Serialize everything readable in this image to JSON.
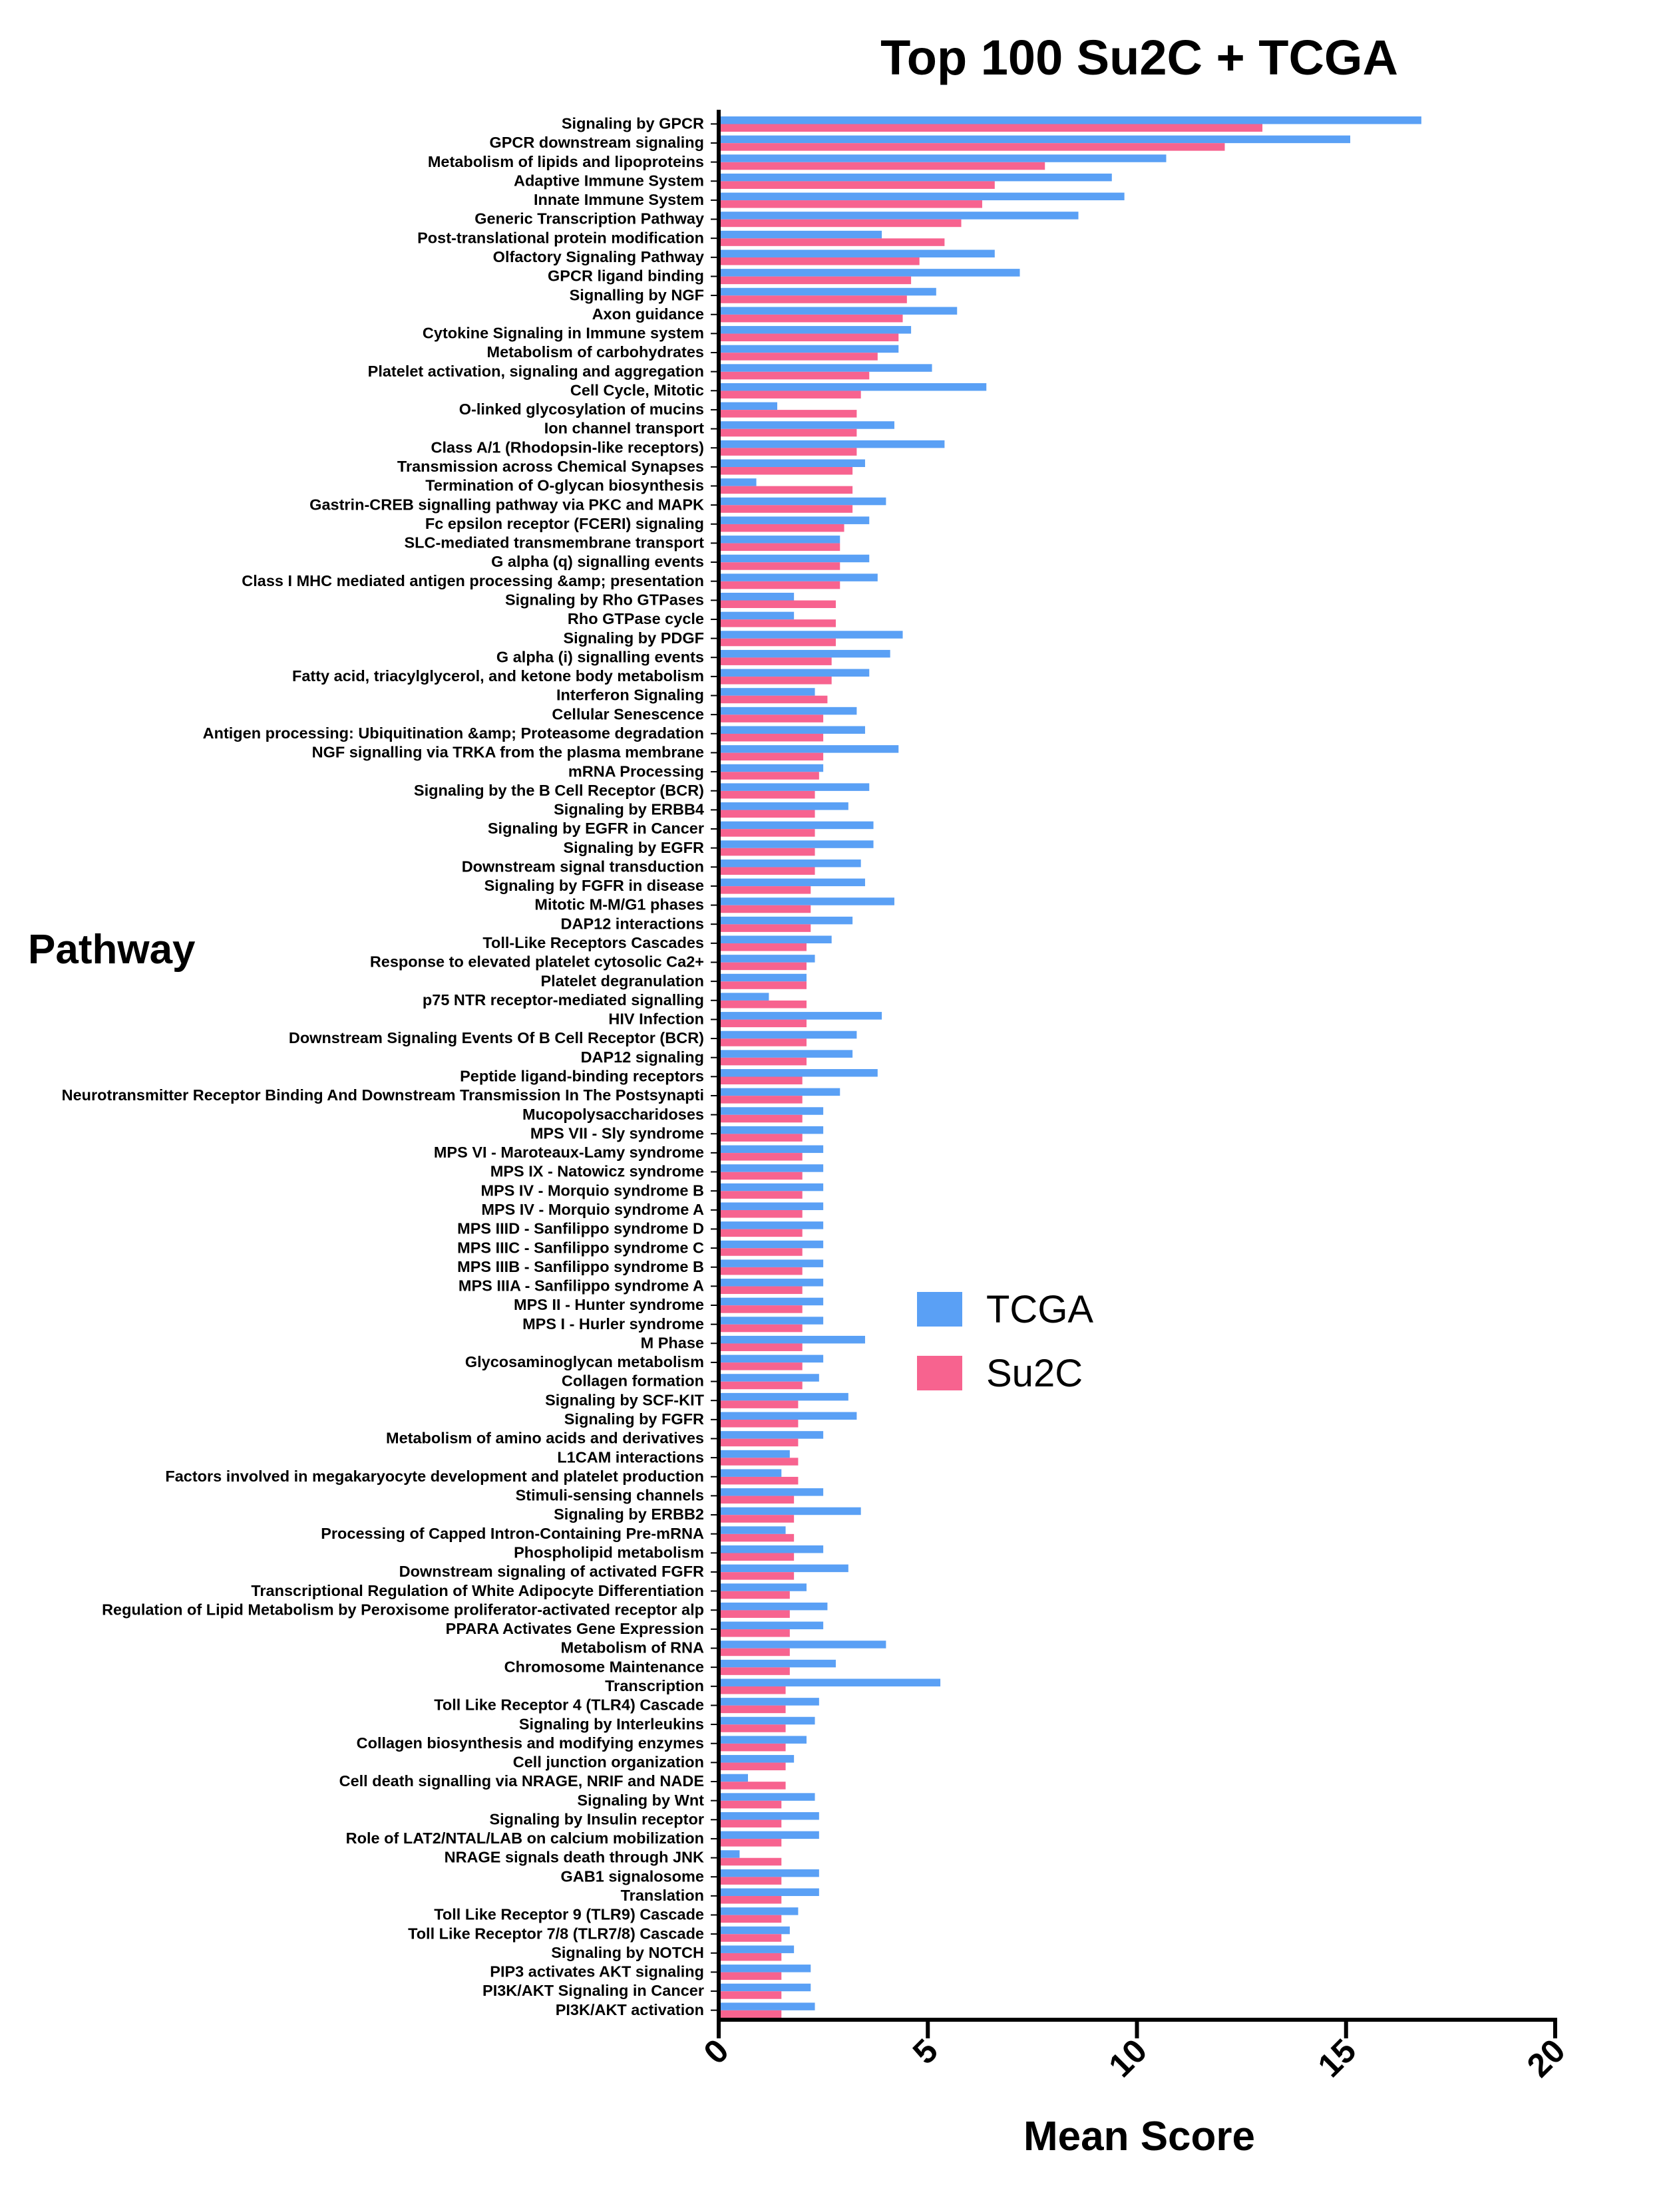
{
  "chart_data": {
    "type": "bar",
    "orientation": "horizontal",
    "title": "Top 100 Su2C + TCGA",
    "xlabel": "Mean  Score",
    "ylabel": "Pathway",
    "xlim": [
      0,
      20
    ],
    "xticks": [
      "0",
      "5",
      "10",
      "15",
      "20"
    ],
    "grid": false,
    "legend": "right",
    "colors": {
      "TCGA": "#5aa0f5",
      "Su2C": "#f7638f"
    },
    "categories": [
      "Signaling by GPCR",
      "GPCR downstream signaling",
      "Metabolism of lipids and lipoproteins",
      "Adaptive Immune System",
      "Innate Immune System",
      "Generic Transcription Pathway",
      "Post-translational protein modification",
      "Olfactory Signaling Pathway",
      "GPCR ligand binding",
      "Signalling by NGF",
      "Axon guidance",
      "Cytokine Signaling in Immune system",
      "Metabolism of carbohydrates",
      "Platelet activation, signaling and aggregation",
      "Cell Cycle, Mitotic",
      "O-linked glycosylation of mucins",
      "Ion channel transport",
      "Class A/1 (Rhodopsin-like receptors)",
      "Transmission across Chemical Synapses",
      "Termination of O-glycan biosynthesis",
      "Gastrin-CREB signalling pathway via PKC and MAPK",
      "Fc epsilon receptor (FCERI) signaling",
      "SLC-mediated transmembrane transport",
      "G alpha (q) signalling events",
      "Class I MHC mediated antigen processing &amp; presentation",
      "Signaling by Rho GTPases",
      "Rho GTPase cycle",
      "Signaling by PDGF",
      "G alpha (i) signalling events",
      "Fatty acid, triacylglycerol, and ketone body metabolism",
      "Interferon Signaling",
      "Cellular Senescence",
      "Antigen processing: Ubiquitination &amp; Proteasome degradation",
      "NGF signalling via TRKA from the plasma membrane",
      "mRNA Processing",
      "Signaling by the B Cell Receptor (BCR)",
      "Signaling by ERBB4",
      "Signaling by EGFR in Cancer",
      "Signaling by EGFR",
      "Downstream signal transduction",
      "Signaling by FGFR in disease",
      "Mitotic M-M/G1 phases",
      "DAP12 interactions",
      "Toll-Like Receptors Cascades",
      "Response to elevated platelet cytosolic Ca2+",
      "Platelet degranulation",
      "p75 NTR receptor-mediated signalling",
      "HIV Infection",
      "Downstream Signaling Events Of B Cell Receptor (BCR)",
      "DAP12 signaling",
      "Peptide ligand-binding receptors",
      "Neurotransmitter Receptor Binding And Downstream Transmission In The Postsynapti",
      "Mucopolysaccharidoses",
      "MPS VII - Sly syndrome",
      "MPS VI - Maroteaux-Lamy syndrome",
      "MPS IX - Natowicz syndrome",
      "MPS IV - Morquio syndrome B",
      "MPS IV - Morquio syndrome A",
      "MPS IIID - Sanfilippo syndrome D",
      "MPS IIIC - Sanfilippo syndrome C",
      "MPS IIIB - Sanfilippo syndrome B",
      "MPS IIIA - Sanfilippo syndrome A",
      "MPS II - Hunter syndrome",
      "MPS I - Hurler syndrome",
      "M Phase",
      "Glycosaminoglycan metabolism",
      "Collagen formation",
      "Signaling by SCF-KIT",
      "Signaling by FGFR",
      "Metabolism of amino acids and derivatives",
      "L1CAM interactions",
      "Factors involved in megakaryocyte development and platelet production",
      "Stimuli-sensing channels",
      "Signaling by ERBB2",
      "Processing of Capped Intron-Containing Pre-mRNA",
      "Phospholipid metabolism",
      "Downstream signaling of activated FGFR",
      "Transcriptional Regulation of White Adipocyte Differentiation",
      "Regulation of Lipid Metabolism by Peroxisome proliferator-activated receptor alp",
      "PPARA Activates Gene Expression",
      "Metabolism of RNA",
      "Chromosome Maintenance",
      "Transcription",
      "Toll Like Receptor 4 (TLR4) Cascade",
      "Signaling by Interleukins",
      "Collagen biosynthesis and modifying enzymes",
      "Cell junction organization",
      "Cell death signalling via NRAGE, NRIF and NADE",
      "Signaling by Wnt",
      "Signaling by Insulin receptor",
      "Role of LAT2/NTAL/LAB on calcium mobilization",
      "NRAGE signals death through JNK",
      "GAB1 signalosome",
      "Translation",
      "Toll Like Receptor 9 (TLR9) Cascade",
      "Toll Like Receptor 7/8 (TLR7/8) Cascade",
      "Signaling by NOTCH",
      "PIP3 activates AKT signaling",
      "PI3K/AKT Signaling in Cancer",
      "PI3K/AKT activation"
    ],
    "series": [
      {
        "name": "TCGA",
        "values": [
          16.8,
          15.1,
          10.7,
          9.4,
          9.7,
          8.6,
          3.9,
          6.6,
          7.2,
          5.2,
          5.7,
          4.6,
          4.3,
          5.1,
          6.4,
          1.4,
          4.2,
          5.4,
          3.5,
          0.9,
          4.0,
          3.6,
          2.9,
          3.6,
          3.8,
          1.8,
          1.8,
          4.4,
          4.1,
          3.6,
          2.3,
          3.3,
          3.5,
          4.3,
          2.5,
          3.6,
          3.1,
          3.7,
          3.7,
          3.4,
          3.5,
          4.2,
          3.2,
          2.7,
          2.3,
          2.1,
          1.2,
          3.9,
          3.3,
          3.2,
          3.8,
          2.9,
          2.5,
          2.5,
          2.5,
          2.5,
          2.5,
          2.5,
          2.5,
          2.5,
          2.5,
          2.5,
          2.5,
          2.5,
          3.5,
          2.5,
          2.4,
          3.1,
          3.3,
          2.5,
          1.7,
          1.5,
          2.5,
          3.4,
          1.6,
          2.5,
          3.1,
          2.1,
          2.6,
          2.5,
          4.0,
          2.8,
          5.3,
          2.4,
          2.3,
          2.1,
          1.8,
          0.7,
          2.3,
          2.4,
          2.4,
          0.5,
          2.4,
          2.4,
          1.9,
          1.7,
          1.8,
          2.2,
          2.2,
          2.3
        ]
      },
      {
        "name": "Su2C",
        "values": [
          13.0,
          12.1,
          7.8,
          6.6,
          6.3,
          5.8,
          5.4,
          4.8,
          4.6,
          4.5,
          4.4,
          4.3,
          3.8,
          3.6,
          3.4,
          3.3,
          3.3,
          3.3,
          3.2,
          3.2,
          3.2,
          3.0,
          2.9,
          2.9,
          2.9,
          2.8,
          2.8,
          2.8,
          2.7,
          2.7,
          2.6,
          2.5,
          2.5,
          2.5,
          2.4,
          2.3,
          2.3,
          2.3,
          2.3,
          2.3,
          2.2,
          2.2,
          2.2,
          2.1,
          2.1,
          2.1,
          2.1,
          2.1,
          2.1,
          2.1,
          2.0,
          2.0,
          2.0,
          2.0,
          2.0,
          2.0,
          2.0,
          2.0,
          2.0,
          2.0,
          2.0,
          2.0,
          2.0,
          2.0,
          2.0,
          2.0,
          2.0,
          1.9,
          1.9,
          1.9,
          1.9,
          1.9,
          1.8,
          1.8,
          1.8,
          1.8,
          1.8,
          1.7,
          1.7,
          1.7,
          1.7,
          1.7,
          1.6,
          1.6,
          1.6,
          1.6,
          1.6,
          1.6,
          1.5,
          1.5,
          1.5,
          1.5,
          1.5,
          1.5,
          1.5,
          1.5,
          1.5,
          1.5,
          1.5,
          1.5
        ]
      }
    ]
  }
}
